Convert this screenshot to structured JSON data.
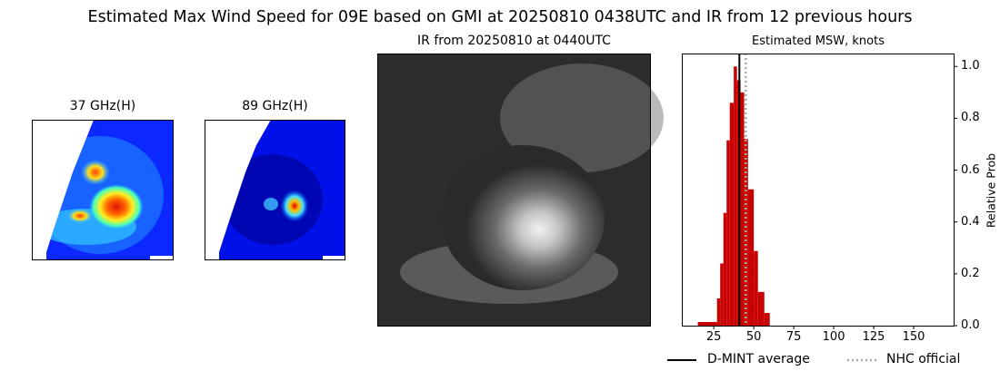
{
  "title": "Estimated Max Wind Speed for 09E based on GMI at 20250810 0438UTC and IR from 12 previous hours",
  "panels": {
    "mw37": {
      "title": "37 GHz(H)"
    },
    "mw89": {
      "title": "89 GHz(H)"
    },
    "ir": {
      "title": "IR from 20250810 at 0440UTC"
    }
  },
  "chart_data": {
    "type": "bar",
    "title": "Estimated MSW, knots",
    "xlabel": "",
    "ylabel": "Relative Prob",
    "xlim": [
      5,
      175
    ],
    "ylim": [
      0,
      1.05
    ],
    "xticks": [
      25,
      50,
      75,
      100,
      125,
      150
    ],
    "yticks": [
      0.0,
      0.2,
      0.4,
      0.6,
      0.8,
      1.0
    ],
    "ytick_labels": [
      "0.0",
      "0.2",
      "0.4",
      "0.6",
      "0.8",
      "1.0"
    ],
    "y_axis_side": "right",
    "bins": [
      {
        "from": 15,
        "to": 27,
        "value": 0.014
      },
      {
        "from": 27,
        "to": 29,
        "value": 0.105
      },
      {
        "from": 29,
        "to": 31,
        "value": 0.24
      },
      {
        "from": 31,
        "to": 33,
        "value": 0.435
      },
      {
        "from": 33,
        "to": 35,
        "value": 0.715
      },
      {
        "from": 35,
        "to": 37.5,
        "value": 0.86
      },
      {
        "from": 37.5,
        "to": 39.5,
        "value": 1.0
      },
      {
        "from": 39.5,
        "to": 41.7,
        "value": 0.947
      },
      {
        "from": 41.7,
        "to": 44,
        "value": 0.9
      },
      {
        "from": 44,
        "to": 46.4,
        "value": 0.72
      },
      {
        "from": 46.4,
        "to": 50,
        "value": 0.526
      },
      {
        "from": 50,
        "to": 52.6,
        "value": 0.288
      },
      {
        "from": 52.6,
        "to": 56.6,
        "value": 0.13
      },
      {
        "from": 56.6,
        "to": 60,
        "value": 0.049
      }
    ],
    "bar_color": "#c80000",
    "lines": [
      {
        "name": "D-MINT average",
        "x": 41,
        "color": "#000000",
        "style": "solid"
      },
      {
        "name": "NHC official",
        "x": 45,
        "color": "#aaaaaa",
        "style": "dotted"
      }
    ],
    "legend_placement": "bottom"
  }
}
